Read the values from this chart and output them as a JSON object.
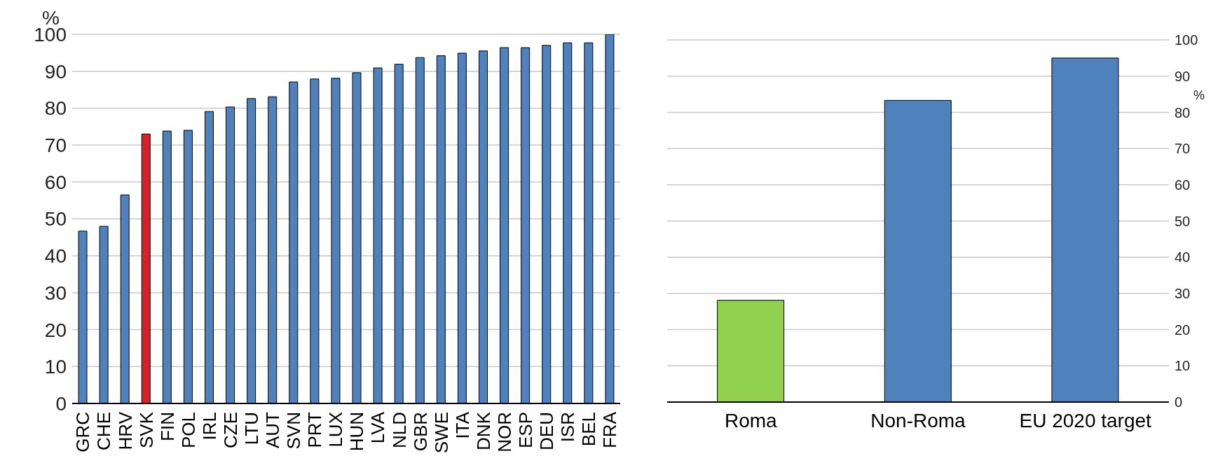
{
  "chart_data": [
    {
      "type": "bar",
      "ylabel": "%",
      "categories": [
        "GRC",
        "CHE",
        "HRV",
        "SVK",
        "FIN",
        "POL",
        "IRL",
        "CZE",
        "LTU",
        "AUT",
        "SVN",
        "PRT",
        "LUX",
        "HUN",
        "LVA",
        "NLD",
        "GBR",
        "SWE",
        "ITA",
        "DNK",
        "NOR",
        "ESP",
        "DEU",
        "ISR",
        "BEL",
        "FRA"
      ],
      "values": [
        46.7,
        48.0,
        56.5,
        73.0,
        73.8,
        74.0,
        79.1,
        80.3,
        82.6,
        83.1,
        87.1,
        87.9,
        88.1,
        89.6,
        90.9,
        91.9,
        93.7,
        94.2,
        94.9,
        95.5,
        96.4,
        96.4,
        97.0,
        97.7,
        97.7,
        100
      ],
      "colors": [
        "#4f81bd",
        "#4f81bd",
        "#4f81bd",
        "#d9202a",
        "#4f81bd",
        "#4f81bd",
        "#4f81bd",
        "#4f81bd",
        "#4f81bd",
        "#4f81bd",
        "#4f81bd",
        "#4f81bd",
        "#4f81bd",
        "#4f81bd",
        "#4f81bd",
        "#4f81bd",
        "#4f81bd",
        "#4f81bd",
        "#4f81bd",
        "#4f81bd",
        "#4f81bd",
        "#4f81bd",
        "#4f81bd",
        "#4f81bd",
        "#4f81bd",
        "#4f81bd"
      ],
      "ylim": [
        0,
        100
      ],
      "yticks": [
        0,
        10,
        20,
        30,
        40,
        50,
        60,
        70,
        80,
        90,
        100
      ],
      "grid": "y"
    },
    {
      "type": "bar",
      "ylabel": "%",
      "categories": [
        "Roma",
        "Non-Roma",
        "EU 2020 target"
      ],
      "values": [
        28.1,
        83.3,
        95
      ],
      "colors": [
        "#92d050",
        "#4f81bd",
        "#4f81bd"
      ],
      "ylim": [
        0,
        100
      ],
      "yticks": [
        0,
        10,
        20,
        30,
        40,
        50,
        60,
        70,
        80,
        90,
        100
      ],
      "grid": "y"
    }
  ]
}
